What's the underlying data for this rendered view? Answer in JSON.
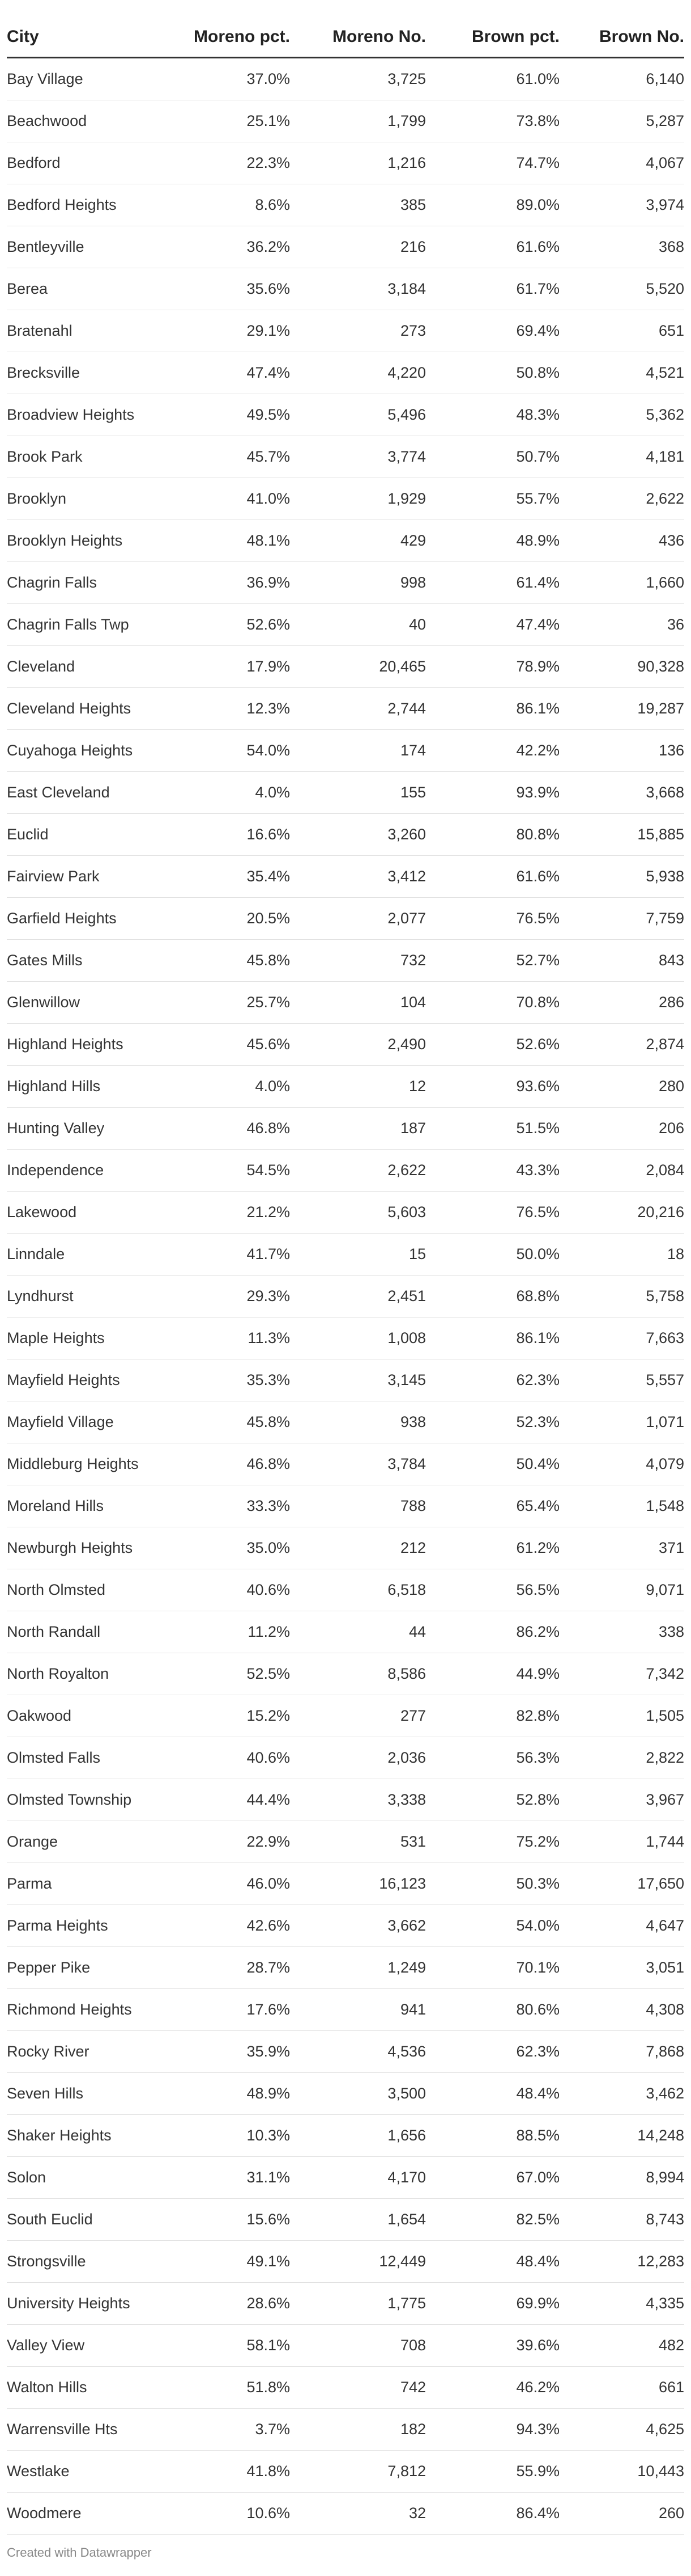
{
  "table": {
    "headers": {
      "city": "City",
      "moreno_pct": "Moreno pct.",
      "moreno_no": "Moreno No.",
      "brown_pct": "Brown pct.",
      "brown_no": "Brown No."
    },
    "rows": [
      [
        "Bay Village",
        "37.0%",
        "3,725",
        "61.0%",
        "6,140"
      ],
      [
        "Beachwood",
        "25.1%",
        "1,799",
        "73.8%",
        "5,287"
      ],
      [
        "Bedford",
        "22.3%",
        "1,216",
        "74.7%",
        "4,067"
      ],
      [
        "Bedford Heights",
        "8.6%",
        "385",
        "89.0%",
        "3,974"
      ],
      [
        "Bentleyville",
        "36.2%",
        "216",
        "61.6%",
        "368"
      ],
      [
        "Berea",
        "35.6%",
        "3,184",
        "61.7%",
        "5,520"
      ],
      [
        "Bratenahl",
        "29.1%",
        "273",
        "69.4%",
        "651"
      ],
      [
        "Brecksville",
        "47.4%",
        "4,220",
        "50.8%",
        "4,521"
      ],
      [
        "Broadview Heights",
        "49.5%",
        "5,496",
        "48.3%",
        "5,362"
      ],
      [
        "Brook Park",
        "45.7%",
        "3,774",
        "50.7%",
        "4,181"
      ],
      [
        "Brooklyn",
        "41.0%",
        "1,929",
        "55.7%",
        "2,622"
      ],
      [
        "Brooklyn Heights",
        "48.1%",
        "429",
        "48.9%",
        "436"
      ],
      [
        "Chagrin Falls",
        "36.9%",
        "998",
        "61.4%",
        "1,660"
      ],
      [
        "Chagrin Falls Twp",
        "52.6%",
        "40",
        "47.4%",
        "36"
      ],
      [
        "Cleveland",
        "17.9%",
        "20,465",
        "78.9%",
        "90,328"
      ],
      [
        "Cleveland Heights",
        "12.3%",
        "2,744",
        "86.1%",
        "19,287"
      ],
      [
        "Cuyahoga Heights",
        "54.0%",
        "174",
        "42.2%",
        "136"
      ],
      [
        "East Cleveland",
        "4.0%",
        "155",
        "93.9%",
        "3,668"
      ],
      [
        "Euclid",
        "16.6%",
        "3,260",
        "80.8%",
        "15,885"
      ],
      [
        "Fairview Park",
        "35.4%",
        "3,412",
        "61.6%",
        "5,938"
      ],
      [
        "Garfield Heights",
        "20.5%",
        "2,077",
        "76.5%",
        "7,759"
      ],
      [
        "Gates Mills",
        "45.8%",
        "732",
        "52.7%",
        "843"
      ],
      [
        "Glenwillow",
        "25.7%",
        "104",
        "70.8%",
        "286"
      ],
      [
        "Highland Heights",
        "45.6%",
        "2,490",
        "52.6%",
        "2,874"
      ],
      [
        "Highland Hills",
        "4.0%",
        "12",
        "93.6%",
        "280"
      ],
      [
        "Hunting Valley",
        "46.8%",
        "187",
        "51.5%",
        "206"
      ],
      [
        "Independence",
        "54.5%",
        "2,622",
        "43.3%",
        "2,084"
      ],
      [
        "Lakewood",
        "21.2%",
        "5,603",
        "76.5%",
        "20,216"
      ],
      [
        "Linndale",
        "41.7%",
        "15",
        "50.0%",
        "18"
      ],
      [
        "Lyndhurst",
        "29.3%",
        "2,451",
        "68.8%",
        "5,758"
      ],
      [
        "Maple Heights",
        "11.3%",
        "1,008",
        "86.1%",
        "7,663"
      ],
      [
        "Mayfield Heights",
        "35.3%",
        "3,145",
        "62.3%",
        "5,557"
      ],
      [
        "Mayfield Village",
        "45.8%",
        "938",
        "52.3%",
        "1,071"
      ],
      [
        "Middleburg Heights",
        "46.8%",
        "3,784",
        "50.4%",
        "4,079"
      ],
      [
        "Moreland Hills",
        "33.3%",
        "788",
        "65.4%",
        "1,548"
      ],
      [
        "Newburgh Heights",
        "35.0%",
        "212",
        "61.2%",
        "371"
      ],
      [
        "North Olmsted",
        "40.6%",
        "6,518",
        "56.5%",
        "9,071"
      ],
      [
        "North Randall",
        "11.2%",
        "44",
        "86.2%",
        "338"
      ],
      [
        "North Royalton",
        "52.5%",
        "8,586",
        "44.9%",
        "7,342"
      ],
      [
        "Oakwood",
        "15.2%",
        "277",
        "82.8%",
        "1,505"
      ],
      [
        "Olmsted Falls",
        "40.6%",
        "2,036",
        "56.3%",
        "2,822"
      ],
      [
        "Olmsted Township",
        "44.4%",
        "3,338",
        "52.8%",
        "3,967"
      ],
      [
        "Orange",
        "22.9%",
        "531",
        "75.2%",
        "1,744"
      ],
      [
        "Parma",
        "46.0%",
        "16,123",
        "50.3%",
        "17,650"
      ],
      [
        "Parma Heights",
        "42.6%",
        "3,662",
        "54.0%",
        "4,647"
      ],
      [
        "Pepper Pike",
        "28.7%",
        "1,249",
        "70.1%",
        "3,051"
      ],
      [
        "Richmond Heights",
        "17.6%",
        "941",
        "80.6%",
        "4,308"
      ],
      [
        "Rocky River",
        "35.9%",
        "4,536",
        "62.3%",
        "7,868"
      ],
      [
        "Seven Hills",
        "48.9%",
        "3,500",
        "48.4%",
        "3,462"
      ],
      [
        "Shaker Heights",
        "10.3%",
        "1,656",
        "88.5%",
        "14,248"
      ],
      [
        "Solon",
        "31.1%",
        "4,170",
        "67.0%",
        "8,994"
      ],
      [
        "South Euclid",
        "15.6%",
        "1,654",
        "82.5%",
        "8,743"
      ],
      [
        "Strongsville",
        "49.1%",
        "12,449",
        "48.4%",
        "12,283"
      ],
      [
        "University Heights",
        "28.6%",
        "1,775",
        "69.9%",
        "4,335"
      ],
      [
        "Valley View",
        "58.1%",
        "708",
        "39.6%",
        "482"
      ],
      [
        "Walton Hills",
        "51.8%",
        "742",
        "46.2%",
        "661"
      ],
      [
        "Warrensville Hts",
        "3.7%",
        "182",
        "94.3%",
        "4,625"
      ],
      [
        "Westlake",
        "41.8%",
        "7,812",
        "55.9%",
        "10,443"
      ],
      [
        "Woodmere",
        "10.6%",
        "32",
        "86.4%",
        "260"
      ]
    ]
  },
  "footer": {
    "credit": "Created with Datawrapper"
  },
  "colors": {
    "text": "#333333",
    "header_rule": "#333333",
    "row_rule": "#e1e1e1",
    "footer_text": "#888888",
    "background": "#ffffff"
  }
}
